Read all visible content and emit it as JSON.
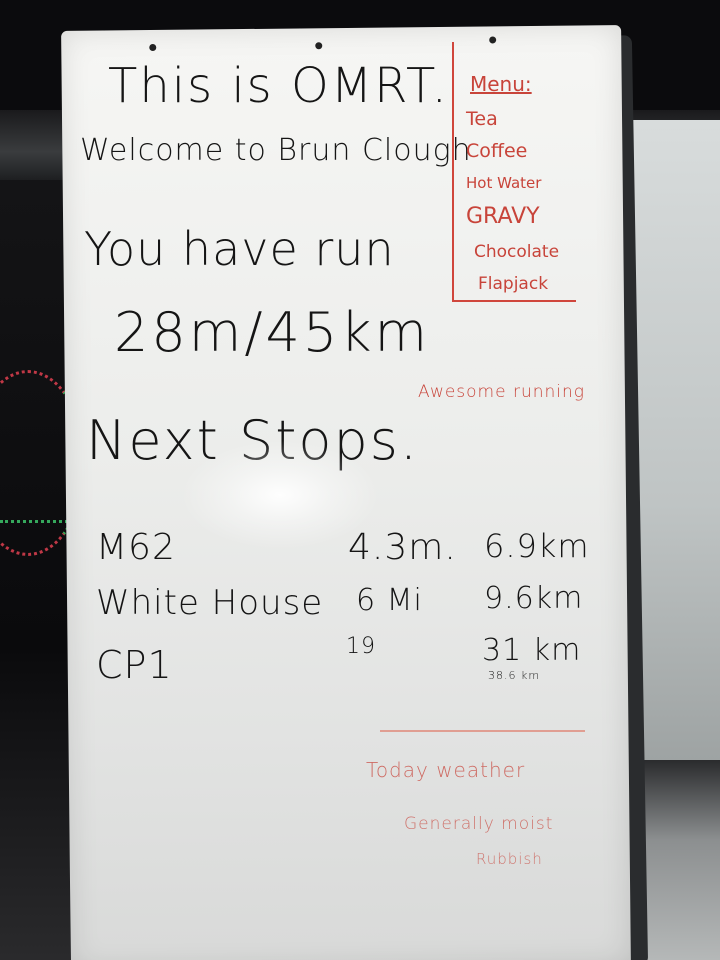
{
  "board": {
    "title": "This is OMRT.",
    "welcome": "Welcome to Brun Clough",
    "you_have_run": "You have run",
    "distance": "28m/45km",
    "note": "Awesome running",
    "next_stops_heading": "Next Stops.",
    "stops": [
      {
        "name": "M62",
        "miles": "4.3m.",
        "km": "6.9km"
      },
      {
        "name": "White House",
        "miles": "6 Mi",
        "km": "9.6km"
      },
      {
        "name": "CP1",
        "miles": "19",
        "km": "31 km"
      }
    ],
    "cp1_subnote": "38.6 km",
    "weather_heading": "Today weather",
    "weather_line1": "Generally moist",
    "weather_line2": "Rubbish"
  },
  "menu": {
    "heading": "Menu:",
    "items": [
      "Tea",
      "Coffee",
      "Hot Water",
      "GRAVY",
      "Chocolate",
      "Flapjack"
    ]
  },
  "colors": {
    "marker_black": "#151515",
    "marker_red": "#c8443a",
    "board": "#f0f0ee"
  }
}
